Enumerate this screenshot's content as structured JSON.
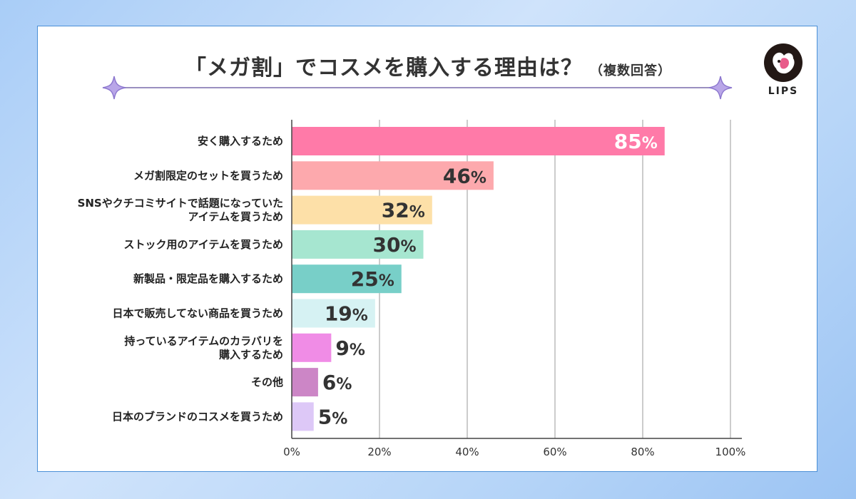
{
  "title": "「メガ割」でコスメを購入する理由は？",
  "subtitle": "（複数回答）",
  "logo": {
    "text": "LIPS",
    "icon": "deer-head-icon"
  },
  "chart_data": {
    "type": "bar",
    "orientation": "horizontal",
    "categories": [
      [
        "安く購入するため"
      ],
      [
        "メガ割限定のセットを買うため"
      ],
      [
        "SNSやクチコミサイトで話題になっていた",
        "アイテムを買うため"
      ],
      [
        "ストック用のアイテムを買うため"
      ],
      [
        "新製品・限定品を購入するため"
      ],
      [
        "日本で販売してない商品を買うため"
      ],
      [
        "持っているアイテムのカラバリを",
        "購入するため"
      ],
      [
        "その他"
      ],
      [
        "日本のブランドのコスメを買うため"
      ]
    ],
    "values": [
      85,
      46,
      32,
      30,
      25,
      19,
      9,
      6,
      5
    ],
    "value_labels": [
      "85%",
      "46%",
      "32%",
      "30%",
      "25%",
      "19%",
      "9%",
      "6%",
      "5%"
    ],
    "bar_colors": [
      "#ff7aa8",
      "#fda9ad",
      "#fde0a8",
      "#a6e6d0",
      "#78cfc8",
      "#d6f2f3",
      "#f08ce6",
      "#cc86c6",
      "#ddc8f7"
    ],
    "label_inside": [
      true,
      true,
      true,
      true,
      true,
      true,
      false,
      false,
      false
    ],
    "label_colors": [
      "#ffffff",
      "#333333",
      "#333333",
      "#333333",
      "#333333",
      "#333333",
      "#333333",
      "#333333",
      "#333333"
    ],
    "xlim": [
      0,
      100
    ],
    "xticks": [
      "0%",
      "20%",
      "40%",
      "60%",
      "80%",
      "100%"
    ],
    "grid": true
  }
}
